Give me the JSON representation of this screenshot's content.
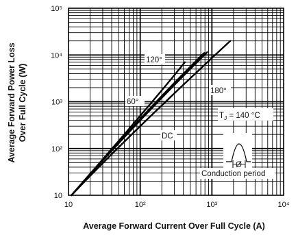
{
  "chart_data": {
    "type": "line",
    "title": "",
    "xlabel": "Average Forward Current Over Full Cycle (A)",
    "ylabel": [
      "Average Forward Power Loss",
      "Over Full Cycle (W)"
    ],
    "xscale": "log",
    "yscale": "log",
    "xlim": [
      10,
      10000
    ],
    "ylim": [
      10,
      100000
    ],
    "x_tick_labels": [
      "10",
      "10²",
      "10³",
      "10⁴"
    ],
    "y_tick_labels": [
      "10",
      "10²",
      "10³",
      "10⁴",
      "10⁵"
    ],
    "grid": true,
    "series": [
      {
        "name": "60°",
        "points": [
          [
            11,
            10
          ],
          [
            100,
            500
          ],
          [
            420,
            7000
          ]
        ]
      },
      {
        "name": "120°",
        "points": [
          [
            11,
            10
          ],
          [
            100,
            430
          ],
          [
            780,
            11000
          ]
        ]
      },
      {
        "name": "180°",
        "points": [
          [
            11,
            10
          ],
          [
            100,
            400
          ],
          [
            860,
            11500
          ]
        ]
      },
      {
        "name": "DC",
        "points": [
          [
            11,
            10
          ],
          [
            100,
            300
          ],
          [
            1800,
            20000
          ]
        ]
      }
    ],
    "annotations": {
      "tj_label": "T",
      "tj_sub": "J",
      "tj_value": " = 140 °C",
      "phi": "Ø",
      "conduction": "Conduction period"
    }
  }
}
